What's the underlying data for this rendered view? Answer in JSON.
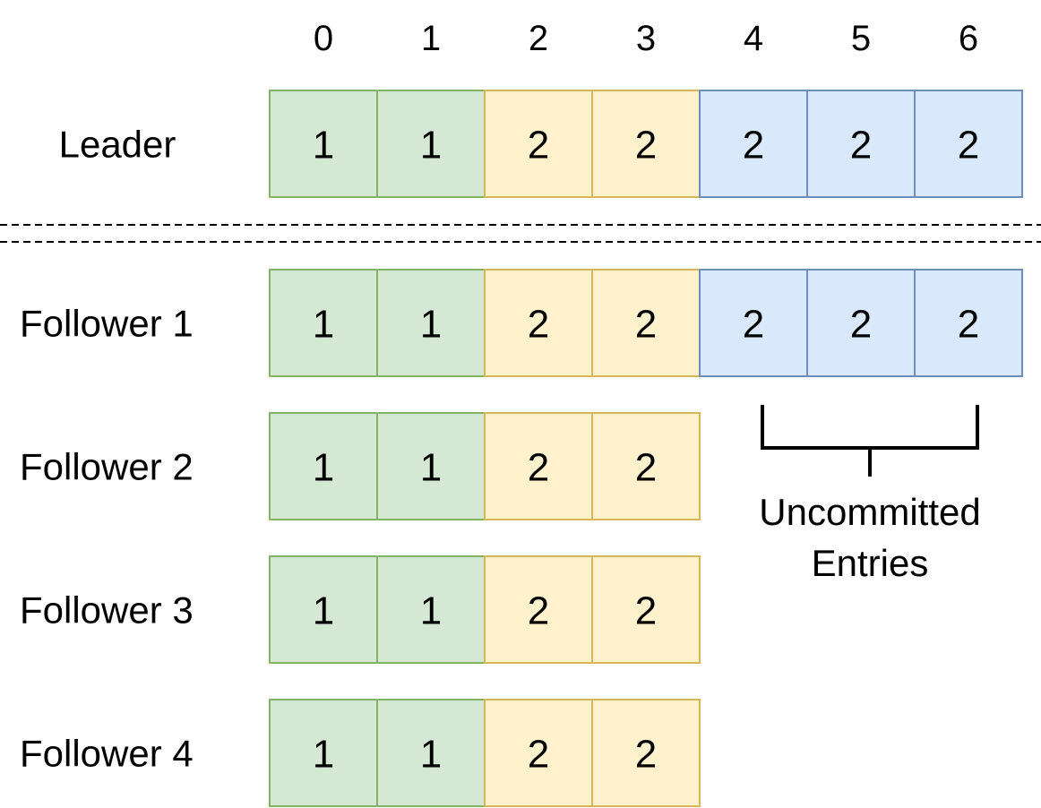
{
  "indices": [
    "0",
    "1",
    "2",
    "3",
    "4",
    "5",
    "6"
  ],
  "colors": {
    "green": {
      "fill": "#d5e8d4",
      "stroke": "#82b366"
    },
    "yellow": {
      "fill": "#fff2cc",
      "stroke": "#d6b656"
    },
    "blue": {
      "fill": "#dae8fc",
      "stroke": "#6c8ebf"
    },
    "divider": "#000000"
  },
  "rows": [
    {
      "id": "leader",
      "label": "Leader",
      "entries": [
        {
          "term": "1",
          "color": "green"
        },
        {
          "term": "1",
          "color": "green"
        },
        {
          "term": "2",
          "color": "yellow"
        },
        {
          "term": "2",
          "color": "yellow"
        },
        {
          "term": "2",
          "color": "blue"
        },
        {
          "term": "2",
          "color": "blue"
        },
        {
          "term": "2",
          "color": "blue"
        }
      ]
    },
    {
      "id": "follower-1",
      "label": "Follower 1",
      "entries": [
        {
          "term": "1",
          "color": "green"
        },
        {
          "term": "1",
          "color": "green"
        },
        {
          "term": "2",
          "color": "yellow"
        },
        {
          "term": "2",
          "color": "yellow"
        },
        {
          "term": "2",
          "color": "blue"
        },
        {
          "term": "2",
          "color": "blue"
        },
        {
          "term": "2",
          "color": "blue"
        }
      ]
    },
    {
      "id": "follower-2",
      "label": "Follower 2",
      "entries": [
        {
          "term": "1",
          "color": "green"
        },
        {
          "term": "1",
          "color": "green"
        },
        {
          "term": "2",
          "color": "yellow"
        },
        {
          "term": "2",
          "color": "yellow"
        }
      ]
    },
    {
      "id": "follower-3",
      "label": "Follower 3",
      "entries": [
        {
          "term": "1",
          "color": "green"
        },
        {
          "term": "1",
          "color": "green"
        },
        {
          "term": "2",
          "color": "yellow"
        },
        {
          "term": "2",
          "color": "yellow"
        }
      ]
    },
    {
      "id": "follower-4",
      "label": "Follower 4",
      "entries": [
        {
          "term": "1",
          "color": "green"
        },
        {
          "term": "1",
          "color": "green"
        },
        {
          "term": "2",
          "color": "yellow"
        },
        {
          "term": "2",
          "color": "yellow"
        }
      ]
    }
  ],
  "annotation": {
    "line1": "Uncommitted",
    "line2": "Entries",
    "from_index": 4,
    "to_index": 6
  }
}
